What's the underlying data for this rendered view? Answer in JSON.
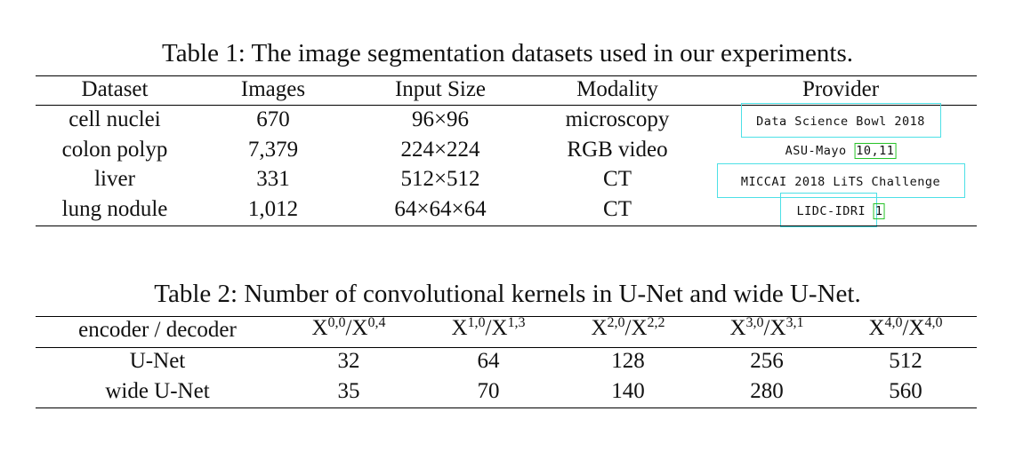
{
  "table1": {
    "caption": "Table 1: The image segmentation datasets used in our experiments.",
    "headers": [
      "Dataset",
      "Images",
      "Input Size",
      "Modality",
      "Provider"
    ],
    "rows": [
      {
        "dataset": "cell nuclei",
        "images": "670",
        "input_size": "96×96",
        "modality": "microscopy",
        "provider": "Data Science Bowl 2018",
        "cite1": "",
        "cite2": ""
      },
      {
        "dataset": "colon polyp",
        "images": "7,379",
        "input_size": "224×224",
        "modality": "RGB video",
        "provider": "ASU-Mayo",
        "cite1": "10",
        "cite2": "11"
      },
      {
        "dataset": "liver",
        "images": "331",
        "input_size": "512×512",
        "modality": "CT",
        "provider": "MICCAI 2018 LiTS Challenge",
        "cite1": "",
        "cite2": ""
      },
      {
        "dataset": "lung nodule",
        "images": "1,012",
        "input_size": "64×64×64",
        "modality": "CT",
        "provider": "LIDC-IDRI",
        "cite1": "1",
        "cite2": ""
      }
    ]
  },
  "table2": {
    "caption": "Table 2: Number of convolutional kernels in U-Net and wide U-Net.",
    "header_first": "encoder / decoder",
    "col_headers": [
      {
        "a": "X",
        "a_sup": "0,0",
        "sep": "/",
        "b": "X",
        "b_sup": "0,4"
      },
      {
        "a": "X",
        "a_sup": "1,0",
        "sep": "/",
        "b": "X",
        "b_sup": "1,3"
      },
      {
        "a": "X",
        "a_sup": "2,0",
        "sep": "/",
        "b": "X",
        "b_sup": "2,2"
      },
      {
        "a": "X",
        "a_sup": "3,0",
        "sep": "/",
        "b": "X",
        "b_sup": "3,1"
      },
      {
        "a": "X",
        "a_sup": "4,0",
        "sep": "/",
        "b": "X",
        "b_sup": "4,0"
      }
    ],
    "rows": [
      {
        "name": "U-Net",
        "values": [
          "32",
          "64",
          "128",
          "256",
          "512"
        ]
      },
      {
        "name": "wide U-Net",
        "values": [
          "35",
          "70",
          "140",
          "280",
          "560"
        ]
      }
    ]
  }
}
